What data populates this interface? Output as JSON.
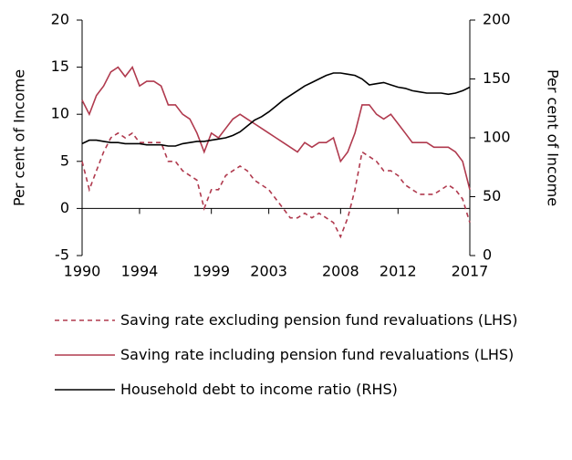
{
  "chart_data": {
    "type": "line",
    "x": [
      1990,
      1990.5,
      1991,
      1991.5,
      1992,
      1992.5,
      1993,
      1993.5,
      1994,
      1994.5,
      1995,
      1995.5,
      1996,
      1996.5,
      1997,
      1997.5,
      1998,
      1998.5,
      1999,
      1999.5,
      2000,
      2000.5,
      2001,
      2001.5,
      2002,
      2002.5,
      2003,
      2003.5,
      2004,
      2004.5,
      2005,
      2005.5,
      2006,
      2006.5,
      2007,
      2007.5,
      2008,
      2008.5,
      2009,
      2009.5,
      2010,
      2010.5,
      2011,
      2011.5,
      2012,
      2012.5,
      2013,
      2013.5,
      2014,
      2014.5,
      2015,
      2015.5,
      2016,
      2016.5,
      2017
    ],
    "series": [
      {
        "name": "Saving rate excluding pension fund revaluations (LHS)",
        "color": "#b03a4e",
        "style": "dashed",
        "values": [
          5,
          2,
          4,
          6,
          7.5,
          8,
          7.5,
          8,
          7,
          7,
          7,
          7,
          5,
          5,
          4,
          3.5,
          3,
          0,
          2,
          2,
          3.5,
          4,
          4.5,
          4,
          3,
          2.5,
          2,
          1,
          0,
          -1,
          -1,
          -0.5,
          -1,
          -0.5,
          -1,
          -1.5,
          -3,
          -1,
          2,
          6,
          5.5,
          5,
          4,
          4,
          3.5,
          2.5,
          2,
          1.5,
          1.5,
          1.5,
          2,
          2.5,
          2,
          1,
          -1.5
        ]
      },
      {
        "name": "Saving rate including pension fund revaluations (LHS)",
        "color": "#b03a4e",
        "style": "solid",
        "values": [
          11.5,
          10,
          12,
          13,
          14.5,
          15,
          14,
          15,
          13,
          13.5,
          13.5,
          13,
          11,
          11,
          10,
          9.5,
          8,
          6,
          8,
          7.5,
          8.5,
          9.5,
          10,
          9.5,
          9,
          8.5,
          8,
          7.5,
          7,
          6.5,
          6,
          7,
          6.5,
          7,
          7,
          7.5,
          5,
          6,
          8,
          11,
          11,
          10,
          9.5,
          10,
          9,
          8,
          7,
          7,
          7,
          6.5,
          6.5,
          6.5,
          6,
          5,
          2
        ]
      },
      {
        "name": "Household debt to income ratio (RHS)",
        "color": "#000000",
        "style": "solid",
        "axis": "y2",
        "values": [
          95,
          98,
          98,
          97,
          96,
          96,
          95,
          95,
          95,
          94,
          94,
          94,
          93,
          93,
          95,
          96,
          97,
          97,
          98,
          99,
          100,
          102,
          105,
          110,
          115,
          118,
          122,
          127,
          132,
          136,
          140,
          144,
          147,
          150,
          153,
          155,
          155,
          154,
          153,
          150,
          145,
          146,
          147,
          145,
          143,
          142,
          140,
          139,
          138,
          138,
          138,
          137,
          138,
          140,
          143
        ]
      }
    ],
    "xlim": [
      1990,
      2017
    ],
    "xticks": [
      1990,
      1994,
      1999,
      2003,
      2008,
      2012,
      2017
    ],
    "ylim": [
      -5,
      20
    ],
    "yticks": [
      -5,
      0,
      5,
      10,
      15,
      20
    ],
    "y2lim": [
      0,
      200
    ],
    "y2ticks": [
      0,
      50,
      100,
      150,
      200
    ],
    "ylabel": "Per cent of Income",
    "y2label": "Per cent of Income"
  }
}
